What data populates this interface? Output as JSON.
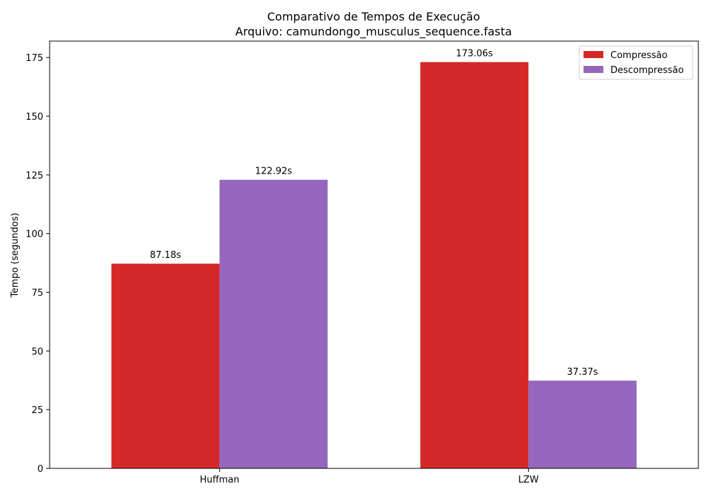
{
  "chart_data": {
    "type": "bar",
    "title": "Comparativo de Tempos de Execução",
    "subtitle": "Arquivo: camundongo_musculus_sequence.fasta",
    "xlabel": "",
    "ylabel": "Tempo (segundos)",
    "categories": [
      "Huffman",
      "LZW"
    ],
    "series": [
      {
        "name": "Compressão",
        "values": [
          87.18,
          173.06
        ],
        "color": "#d62728"
      },
      {
        "name": "Descompressão",
        "values": [
          122.92,
          37.37
        ],
        "color": "#9467bd"
      }
    ],
    "data_labels": [
      [
        "87.18s",
        "173.06s"
      ],
      [
        "122.92s",
        "37.37s"
      ]
    ],
    "ylim": [
      0,
      182
    ],
    "yticks": [
      0,
      25,
      50,
      75,
      100,
      125,
      150,
      175
    ],
    "grid": false,
    "legend_position": "top-right"
  }
}
